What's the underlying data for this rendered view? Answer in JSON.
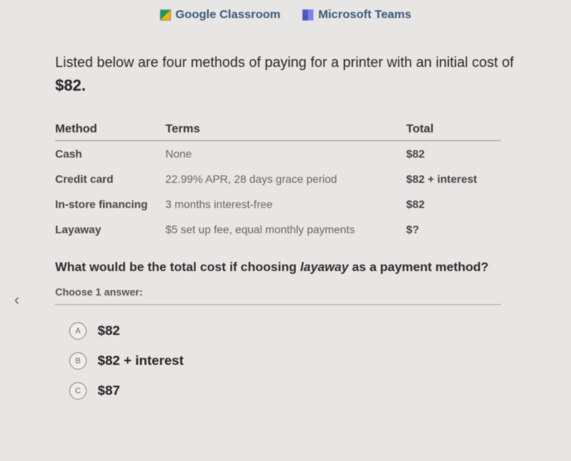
{
  "topLinks": {
    "google": "Google Classroom",
    "microsoft": "Microsoft Teams"
  },
  "intro": "Listed below are four methods of paying for a printer with an initial cost of",
  "price": "$82.",
  "table": {
    "headers": {
      "method": "Method",
      "terms": "Terms",
      "total": "Total"
    },
    "rows": [
      {
        "method": "Cash",
        "terms": "None",
        "total": "$82"
      },
      {
        "method": "Credit card",
        "terms": "22.99% APR, 28 days grace period",
        "total": "$82 + interest"
      },
      {
        "method": "In-store financing",
        "terms": "3 months interest-free",
        "total": "$82"
      },
      {
        "method": "Layaway",
        "terms": "$5 set up fee, equal monthly payments",
        "total": "$?"
      }
    ]
  },
  "question_pre": "What would be the total cost if choosing ",
  "question_em": "layaway",
  "question_post": " as a payment method?",
  "choose": "Choose 1 answer:",
  "answers": [
    {
      "letter": "A",
      "text": "$82"
    },
    {
      "letter": "B",
      "text": "$82 + interest"
    },
    {
      "letter": "C",
      "text": "$87"
    }
  ],
  "backCaret": "‹"
}
